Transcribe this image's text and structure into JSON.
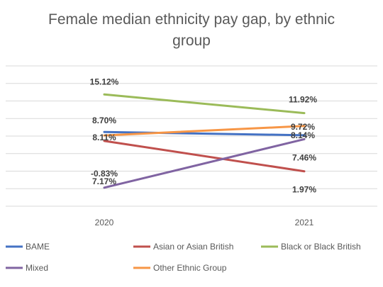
{
  "chart_data": {
    "type": "line",
    "title_line1": "Female median ethnicity pay gap, by ethnic",
    "title_line2": "group",
    "categories": [
      "2020",
      "2021"
    ],
    "ylim": [
      -4,
      20
    ],
    "grid": true,
    "legend_position": "bottom",
    "series": [
      {
        "name": "BAME",
        "values": [
          8.7,
          8.14
        ],
        "labels": [
          "8.70%",
          "8.14%"
        ],
        "color": "#4472C4"
      },
      {
        "name": "Asian or Asian British",
        "values": [
          7.17,
          1.97
        ],
        "labels": [
          "7.17%",
          "1.97%"
        ],
        "color": "#C0504D"
      },
      {
        "name": "Black or Black British",
        "values": [
          15.12,
          11.92
        ],
        "labels": [
          "15.12%",
          "11.92%"
        ],
        "color": "#9BBB59"
      },
      {
        "name": "Mixed",
        "values": [
          -0.83,
          7.46
        ],
        "labels": [
          "-0.83%",
          "7.46%"
        ],
        "color": "#8064A2"
      },
      {
        "name": "Other Ethnic Group",
        "values": [
          8.11,
          9.72
        ],
        "labels": [
          "8.11%",
          "9.72%"
        ],
        "color": "#F79646"
      }
    ]
  }
}
